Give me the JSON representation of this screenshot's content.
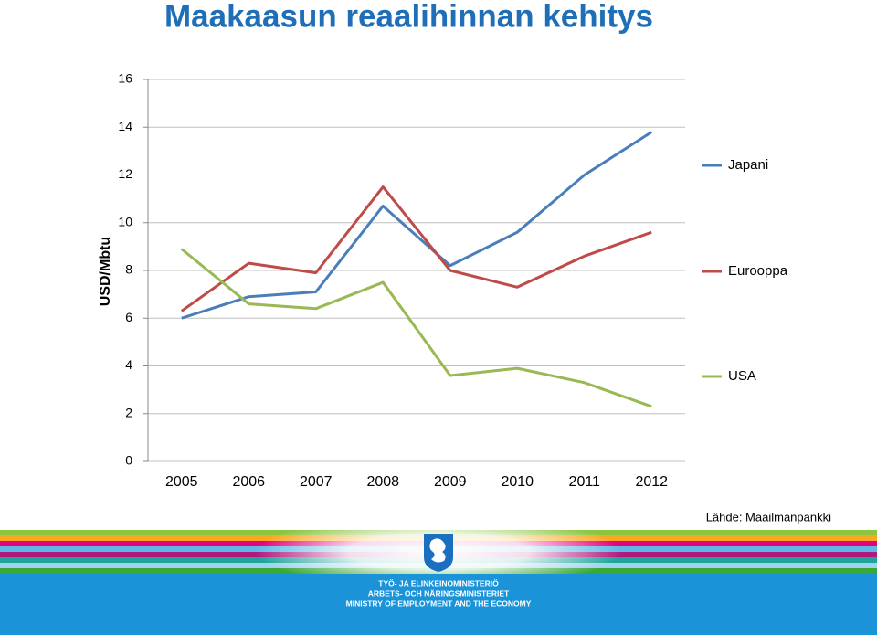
{
  "chart_data": {
    "type": "line",
    "title": "Maakaasun reaalihinnan kehitys",
    "y_label": "USD/Mbtu",
    "source": "Lähde: Maailmanpankki",
    "categories": [
      "2005",
      "2006",
      "2007",
      "2008",
      "2009",
      "2010",
      "2011",
      "2012"
    ],
    "series": [
      {
        "name": "Japani",
        "color": "#4a7ebb",
        "values": [
          6.0,
          6.9,
          7.1,
          10.7,
          8.2,
          9.6,
          12.0,
          13.8
        ]
      },
      {
        "name": "Eurooppa",
        "color": "#be4b48",
        "values": [
          6.3,
          8.3,
          7.9,
          11.5,
          8.0,
          7.3,
          8.6,
          9.6
        ]
      },
      {
        "name": "USA",
        "color": "#98b954",
        "values": [
          8.9,
          6.6,
          6.4,
          7.5,
          3.6,
          3.9,
          3.3,
          2.3
        ]
      }
    ],
    "ylim": [
      0,
      16
    ],
    "yticks": [
      0,
      2,
      4,
      6,
      8,
      10,
      12,
      14,
      16
    ],
    "grid": true,
    "legend": "right"
  },
  "footer": {
    "lines": [
      "TYÖ- JA ELINKEINOMINISTERIÖ",
      "ARBETS- OCH NÄRINGSMINISTERIET",
      "MINISTRY OF EMPLOYMENT AND THE ECONOMY"
    ]
  }
}
